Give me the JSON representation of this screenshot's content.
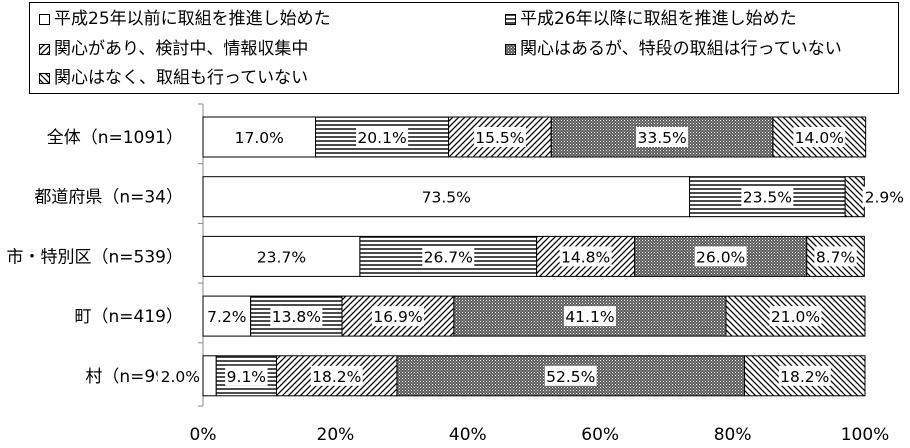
{
  "chart_data": {
    "type": "bar",
    "orientation": "horizontal",
    "stacked": true,
    "categories": [
      "全体（n=1091）",
      "都道府県（n=34）",
      "市・特別区（n=539）",
      "町（n=419）",
      "村（n=99）"
    ],
    "series": [
      {
        "name": "平成25年以前に取組を推進し始めた",
        "values": [
          17.0,
          73.5,
          23.7,
          7.2,
          2.0
        ],
        "labels": [
          "17.0%",
          "73.5%",
          "23.7%",
          "7.2%",
          "2.0%"
        ],
        "pattern": "blank"
      },
      {
        "name": "平成26年以降に取組を推進し始めた",
        "values": [
          20.1,
          23.5,
          26.7,
          13.8,
          9.1
        ],
        "labels": [
          "20.1%",
          "23.5%",
          "26.7%",
          "13.8%",
          "9.1%"
        ],
        "pattern": "horizontal-lines"
      },
      {
        "name": "関心があり、検討中、情報収集中",
        "values": [
          15.5,
          0.0,
          14.8,
          16.9,
          18.2
        ],
        "labels": [
          "15.5%",
          "",
          "14.8%",
          "16.9%",
          "18.2%"
        ],
        "pattern": "forward-diagonal"
      },
      {
        "name": "関心はあるが、特段の取組は行っていない",
        "values": [
          33.5,
          0.0,
          26.0,
          41.1,
          52.5
        ],
        "labels": [
          "33.5%",
          "",
          "26.0%",
          "41.1%",
          "52.5%"
        ],
        "pattern": "dense-dots"
      },
      {
        "name": "関心はなく、取組も行っていない",
        "values": [
          14.0,
          2.9,
          8.7,
          21.0,
          18.2
        ],
        "labels": [
          "14.0%",
          "2.9%",
          "8.7%",
          "21.0%",
          "18.2%"
        ],
        "pattern": "back-diagonal"
      }
    ],
    "xlim": [
      0,
      100
    ],
    "x_ticks": [
      "0%",
      "20%",
      "40%",
      "60%",
      "80%",
      "100%"
    ],
    "grid": false,
    "legend_position": "top"
  }
}
